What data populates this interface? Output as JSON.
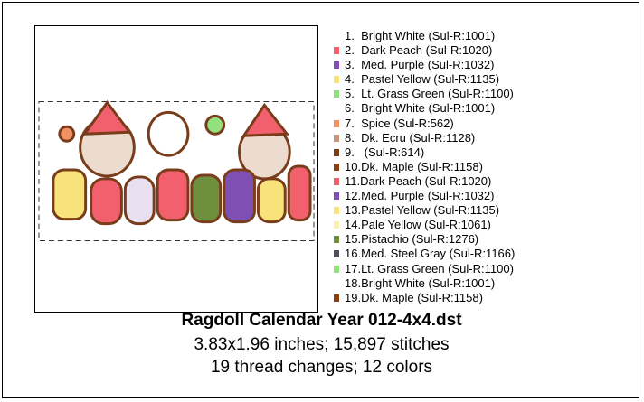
{
  "design": {
    "threads": [
      {
        "label": "1.  Bright White (Sul-R:1001)",
        "color": "#ffffff"
      },
      {
        "label": "2.  Dark Peach (Sul-R:1020)",
        "color": "#f2606e"
      },
      {
        "label": "3.  Med. Purple (Sul-R:1032)",
        "color": "#7f4fb3"
      },
      {
        "label": "4.  Pastel Yellow (Sul-R:1135)",
        "color": "#f8e27a"
      },
      {
        "label": "5.  Lt. Grass Green (Sul-R:1100)",
        "color": "#92e07e"
      },
      {
        "label": "6.  Bright White (Sul-R:1001)",
        "color": "#ffffff"
      },
      {
        "label": "7.  Spice (Sul-R:562)",
        "color": "#f29161"
      },
      {
        "label": "8.  Dk. Ecru (Sul-R:1128)",
        "color": "#c4967a"
      },
      {
        "label": "9.   (Sul-R:614)",
        "color": "#7a3d1c"
      },
      {
        "label": "10.Dk. Maple (Sul-R:1158)",
        "color": "#8a3e14"
      },
      {
        "label": "11.Dark Peach (Sul-R:1020)",
        "color": "#f2606e"
      },
      {
        "label": "12.Med. Purple (Sul-R:1032)",
        "color": "#7f4fb3"
      },
      {
        "label": "13.Pastel Yellow (Sul-R:1135)",
        "color": "#f8e27a"
      },
      {
        "label": "14.Pale Yellow (Sul-R:1061)",
        "color": "#fdf0b3"
      },
      {
        "label": "15.Pistachio (Sul-R:1276)",
        "color": "#6f8f3f"
      },
      {
        "label": "16.Med. Steel Gray (Sul-R:1166)",
        "color": "#4e4f5c"
      },
      {
        "label": "17.Lt. Grass Green (Sul-R:1100)",
        "color": "#92e07e"
      },
      {
        "label": "18.Bright White (Sul-R:1001)",
        "color": "#ffffff"
      },
      {
        "label": "19.Dk. Maple (Sul-R:1158)",
        "color": "#8a3e14"
      }
    ],
    "title": "Ragdoll Calendar Year 012-4x4.dst",
    "size_line": "3.83x1.96 inches; 15,897 stitches",
    "summary_line": "19 thread changes; 12 colors"
  }
}
